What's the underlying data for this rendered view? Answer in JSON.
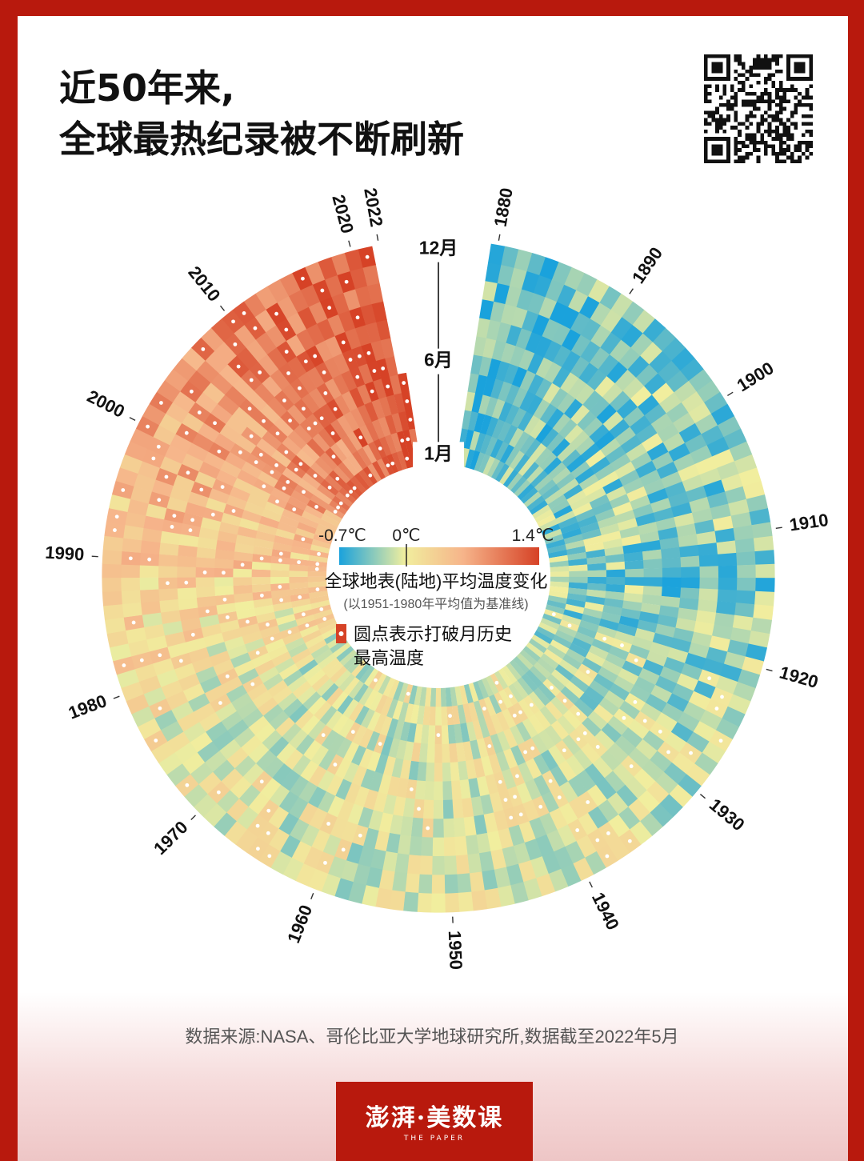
{
  "title": {
    "line1": "近50年来,",
    "line2": "全球最热纪录被不断刷新"
  },
  "qr_code": "qr-code-icon",
  "source": "数据来源:NASA、哥伦比亚大学地球研究所,数据截至2022年5月",
  "brand": {
    "main": "澎湃·美数课",
    "sub": "THE PAPER"
  },
  "colors": {
    "frame": "#b8190d",
    "cold": "#1aa2dc",
    "neutral": "#f1ee9e",
    "hot": "#d64226"
  },
  "chart_data": {
    "type": "heatmap",
    "layout": "radial",
    "legend": {
      "title": "全球地表(陆地)平均温度变化",
      "subtitle": "(以1951-1980年平均值为基准线)",
      "ticks": [
        "-0.7℃",
        "0℃",
        "1.4℃"
      ],
      "range": [
        -0.7,
        1.4
      ],
      "record_note": "圆点表示打破月历史\n最高温度"
    },
    "month_axis": {
      "labels": [
        "12月",
        "6月",
        "1月"
      ],
      "months": [
        12,
        6,
        1
      ]
    },
    "year_labels": [
      "1880",
      "1890",
      "1900",
      "1910",
      "1920",
      "1930",
      "1940",
      "1950",
      "1960",
      "1970",
      "1980",
      "1990",
      "2000",
      "2010",
      "2020",
      "2022"
    ],
    "year_label_values": [
      1880,
      1890,
      1900,
      1910,
      1920,
      1930,
      1940,
      1950,
      1960,
      1970,
      1980,
      1990,
      2000,
      2010,
      2020,
      2022
    ],
    "start_year": 1880,
    "end": {
      "year": 2022,
      "month": 5
    },
    "decade_mean_anomaly": [
      {
        "decade": "1880s",
        "mean": -0.45
      },
      {
        "decade": "1890s",
        "mean": -0.35
      },
      {
        "decade": "1900s",
        "mean": -0.3
      },
      {
        "decade": "1910s",
        "mean": -0.35
      },
      {
        "decade": "1920s",
        "mean": -0.2
      },
      {
        "decade": "1930s",
        "mean": -0.05
      },
      {
        "decade": "1940s",
        "mean": 0.0
      },
      {
        "decade": "1950s",
        "mean": -0.05
      },
      {
        "decade": "1960s",
        "mean": -0.02
      },
      {
        "decade": "1970s",
        "mean": -0.02
      },
      {
        "decade": "1980s",
        "mean": 0.25
      },
      {
        "decade": "1990s",
        "mean": 0.45
      },
      {
        "decade": "2000s",
        "mean": 0.8
      },
      {
        "decade": "2010s",
        "mean": 1.1
      },
      {
        "decade": "2020s",
        "mean": 1.3
      }
    ]
  }
}
